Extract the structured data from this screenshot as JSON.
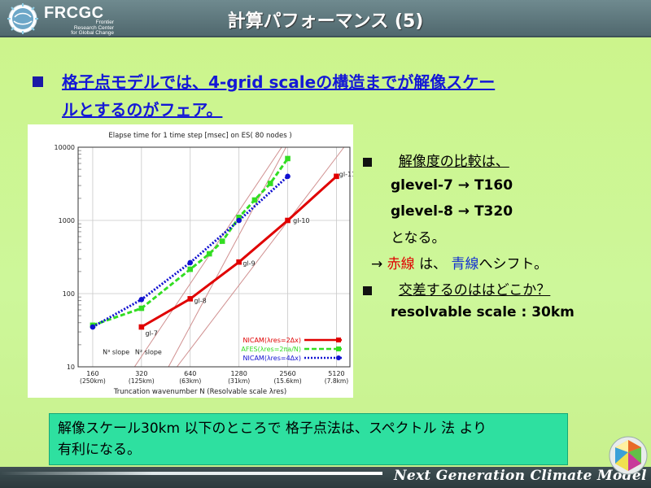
{
  "header": {
    "logo_text": "FRCGC",
    "logo_sub_1": "Frontier",
    "logo_sub_2": "Research Center",
    "logo_sub_3": "for Global Change",
    "title": "計算パフォーマンス (5)"
  },
  "headline": {
    "line1": "格子点モデルでは、4-grid scaleの構造までが解像スケー",
    "line2": "ルとするのがフェア。"
  },
  "right_panel": {
    "item1_heading": "解像度の比較は、",
    "item1_line1_a": "glevel-7",
    "item1_arrow": "→",
    "item1_line1_b": "T160",
    "item1_line2_a": "glevel-8",
    "item1_line2_b": "T320",
    "item1_line3": "となる。",
    "shift_arrow": "→",
    "shift_red": "赤線",
    "shift_mid": "は、",
    "shift_blue": "青線",
    "shift_end": "へシフト。",
    "item2_heading": "交差するのははどこか？",
    "item2_value": "resolvable scale : 30km"
  },
  "callout": {
    "line1": "解像スケール30km 以下のところで 格子点法は、スペクトル 法 より",
    "line2": "有利になる。"
  },
  "footer": {
    "text": "Next Generation Climate Model"
  },
  "chart_data": {
    "type": "line",
    "title": "Elapse time for 1 time step [msec] on ES( 80 nodes )",
    "xlabel": "Truncation wavenumber N (Resolvable scale λres)",
    "ylabel": "",
    "xscale": "log",
    "yscale": "log",
    "xlim": [
      130,
      6200
    ],
    "ylim": [
      10,
      10000
    ],
    "x_ticks": [
      {
        "value": 160,
        "label1": "160",
        "label2": "(250km)"
      },
      {
        "value": 320,
        "label1": "320",
        "label2": "(125km)"
      },
      {
        "value": 640,
        "label1": "640",
        "label2": "(63km)"
      },
      {
        "value": 1280,
        "label1": "1280",
        "label2": "(31km)"
      },
      {
        "value": 2560,
        "label1": "2560",
        "label2": "(15.6km)"
      },
      {
        "value": 5120,
        "label1": "5120",
        "label2": "(7.8km)"
      }
    ],
    "y_ticks": [
      {
        "value": 10,
        "label": "10"
      },
      {
        "value": 100,
        "label": "100"
      },
      {
        "value": 1000,
        "label": "1000"
      },
      {
        "value": 10000,
        "label": "10000"
      }
    ],
    "grid": true,
    "series": [
      {
        "name": "NICAM(λres=2Δx)",
        "color": "#e00000",
        "marker": "square",
        "dash": "solid",
        "points": [
          [
            320,
            35
          ],
          [
            640,
            85
          ],
          [
            1280,
            270
          ],
          [
            2560,
            1000
          ],
          [
            5120,
            4000
          ]
        ]
      },
      {
        "name": "AFES(λres=2πa/N)",
        "color": "#33dd22",
        "marker": "square",
        "dash": "dashed",
        "points": [
          [
            160,
            37
          ],
          [
            320,
            63
          ],
          [
            640,
            215
          ],
          [
            840,
            350
          ],
          [
            1010,
            520
          ],
          [
            1280,
            1100
          ],
          [
            1600,
            1900
          ],
          [
            2000,
            3200
          ],
          [
            2560,
            7000
          ]
        ]
      },
      {
        "name": "NICAM(λres=4Δx)",
        "color": "#1010d0",
        "marker": "circle",
        "dash": "dotted",
        "points": [
          [
            160,
            35
          ],
          [
            320,
            83
          ],
          [
            640,
            265
          ],
          [
            1280,
            1000
          ],
          [
            2560,
            4000
          ]
        ]
      }
    ],
    "reference_lines": [
      {
        "from": [
          290,
          10
        ],
        "to": [
          2350,
          10000
        ],
        "label": ""
      },
      {
        "from": [
          470,
          10
        ],
        "to": [
          2500,
          10000
        ],
        "label": ""
      },
      {
        "from": [
          530,
          10
        ],
        "to": [
          5700,
          10000
        ],
        "label": ""
      }
    ],
    "annotations": [
      {
        "text": "gl-7",
        "x": 330,
        "y": 29
      },
      {
        "text": "gl-8",
        "x": 660,
        "y": 80
      },
      {
        "text": "gl-9",
        "x": 1320,
        "y": 260
      },
      {
        "text": "gl-10",
        "x": 2700,
        "y": 1000
      },
      {
        "text": "gl-11",
        "x": 5200,
        "y": 4300
      },
      {
        "text": "N³ slope",
        "x": 180,
        "y": 16
      },
      {
        "text": "N² slope",
        "x": 285,
        "y": 16
      }
    ],
    "legend_position": "bottom-right"
  }
}
